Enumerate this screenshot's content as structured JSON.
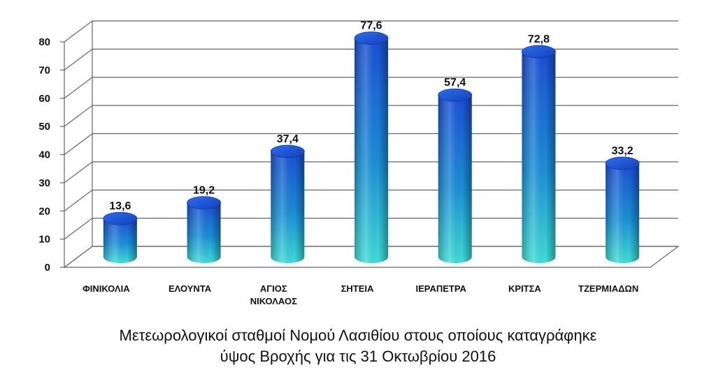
{
  "chart_data": {
    "type": "bar",
    "categories": [
      "ΦΙΝΙΚΟΛΙΑ",
      "ΕΛΟΥΝΤΑ",
      "ΑΓΙΟΣ ΝΙΚΟΛΑΟΣ",
      "ΣΗΤΕΙΑ",
      "ΙΕΡΑΠΕΤΡΑ",
      "ΚΡΙΤΣΑ",
      "ΤΖΕΡΜΙΑΔΩΝ"
    ],
    "values": [
      13.6,
      19.2,
      37.4,
      77.6,
      57.4,
      72.8,
      33.2
    ],
    "value_labels": [
      "13,6",
      "19,2",
      "37,4",
      "77,6",
      "57,4",
      "72,8",
      "33,2"
    ],
    "ylim": [
      0,
      80
    ],
    "yticks": [
      0,
      10,
      20,
      30,
      40,
      50,
      60,
      70,
      80
    ],
    "grid": true,
    "style": "3d-cylinder",
    "colors": {
      "top": "#1a4fd6",
      "bottom": "#3ee0d8",
      "grid": "#666666"
    }
  },
  "caption": {
    "line1": "Μετεωρολογικοί σταθμοί Νομού Λασιθίου στους οποίους καταγράφηκε",
    "line2": "ύψος Βροχής για τις 31 Οκτωβρίου 2016"
  }
}
